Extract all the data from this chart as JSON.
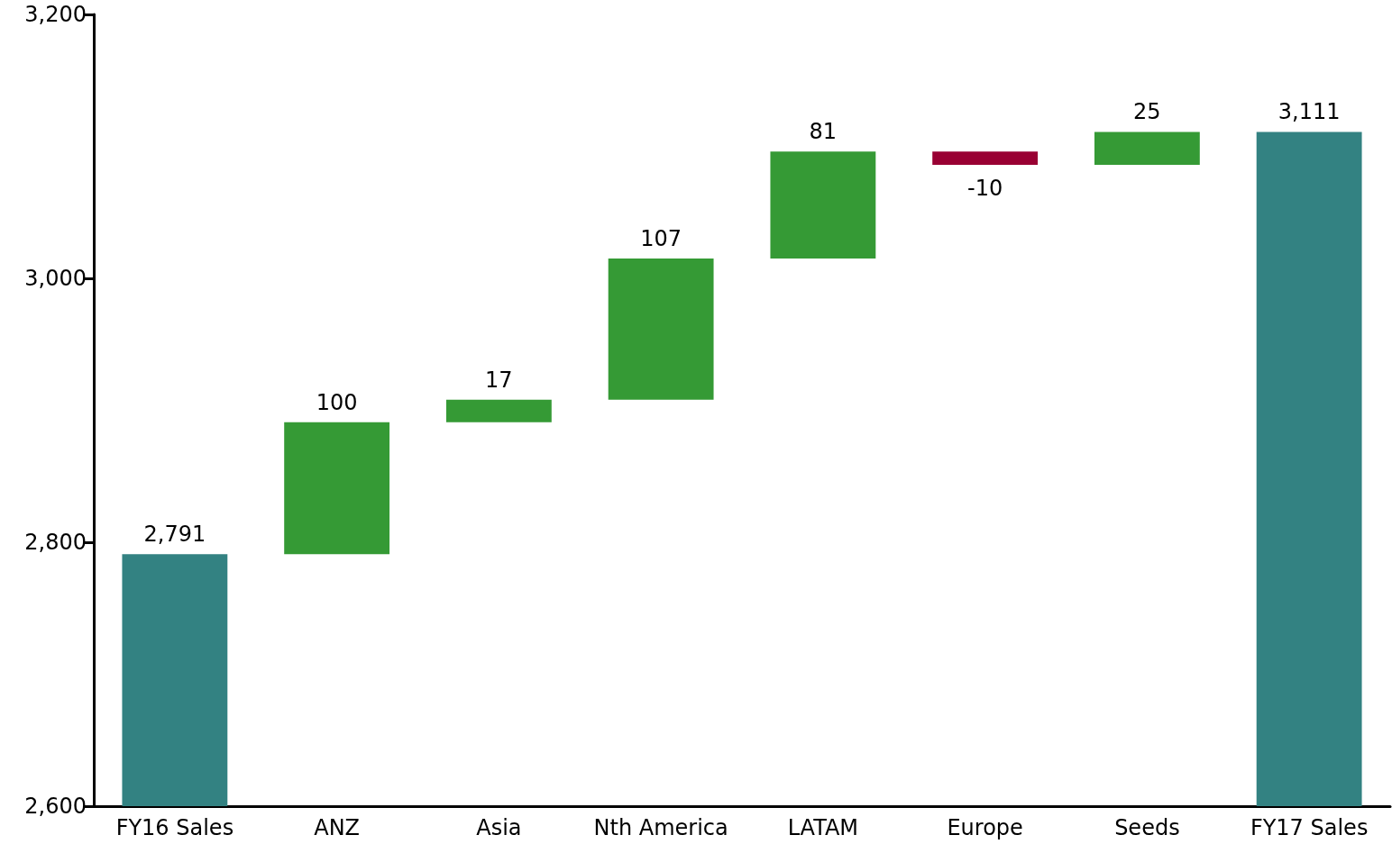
{
  "chart_data": {
    "type": "bar",
    "categories": [
      "FY16 Sales",
      "ANZ",
      "Asia",
      "Nth America",
      "LATAM",
      "Europe",
      "Seeds",
      "FY17 Sales"
    ],
    "values": [
      2791,
      100,
      17,
      107,
      81,
      -10,
      25,
      3111
    ],
    "base": [
      null,
      2791,
      2891,
      2908,
      3015,
      3096,
      3086,
      null
    ],
    "colors": [
      "#338282",
      "#359a35",
      "#359a35",
      "#359a35",
      "#359a35",
      "#990033",
      "#359a35",
      "#338282"
    ],
    "ylim": [
      2600,
      3200
    ],
    "yticks": [
      {
        "value": 2600,
        "label": "2,600"
      },
      {
        "value": 2800,
        "label": "2,800"
      },
      {
        "value": 3000,
        "label": "3,000"
      },
      {
        "value": 3200,
        "label": "3,200"
      }
    ],
    "value_labels": [
      "2,791",
      "100",
      "17",
      "107",
      "81",
      "-10",
      "25",
      "3,111"
    ],
    "grid": false
  }
}
